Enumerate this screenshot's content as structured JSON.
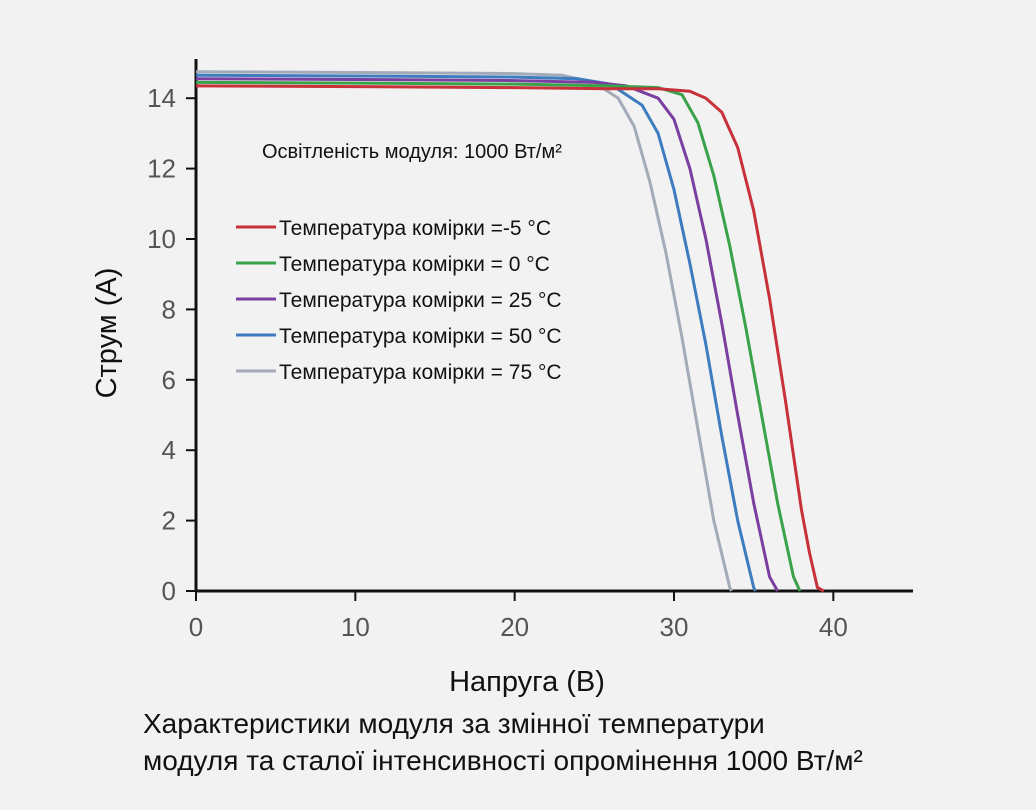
{
  "chart_data": {
    "type": "line",
    "xlabel": "Напруга (В)",
    "ylabel": "Струм (А)",
    "xlim": [
      0,
      45
    ],
    "ylim": [
      0,
      15
    ],
    "xticks": [
      0,
      10,
      20,
      30,
      40
    ],
    "yticks": [
      0,
      2,
      4,
      6,
      8,
      10,
      12,
      14
    ],
    "grid": false,
    "legend_position": "upper-left",
    "annotation": "Освітленість модуля: 1000 Вт/м²",
    "series": [
      {
        "name": "Температура комірки =-5 °С",
        "color": "#c8303a",
        "x": [
          0,
          10,
          20,
          26,
          29,
          31,
          32,
          33,
          34,
          35,
          36,
          37,
          38,
          38.5,
          39,
          39.4
        ],
        "y": [
          14.35,
          14.33,
          14.3,
          14.27,
          14.27,
          14.2,
          14.0,
          13.6,
          12.6,
          10.8,
          8.3,
          5.4,
          2.3,
          1.1,
          0.1,
          0
        ]
      },
      {
        "name": "Температура комірки = 0 °С",
        "color": "#3aa24a",
        "x": [
          0,
          10,
          20,
          26,
          29,
          30.5,
          31.5,
          32.5,
          33.5,
          34.5,
          35.5,
          36.5,
          37.5,
          37.9
        ],
        "y": [
          14.45,
          14.43,
          14.4,
          14.35,
          14.3,
          14.1,
          13.3,
          11.8,
          9.8,
          7.5,
          5.0,
          2.5,
          0.4,
          0
        ]
      },
      {
        "name": "Температура комірки = 25 °С",
        "color": "#7a3fa0",
        "x": [
          0,
          10,
          20,
          25,
          27,
          29,
          30,
          31,
          32,
          33,
          34,
          35,
          36,
          36.5
        ],
        "y": [
          14.55,
          14.53,
          14.5,
          14.45,
          14.35,
          14.0,
          13.4,
          12.0,
          10.0,
          7.6,
          5.0,
          2.5,
          0.4,
          0
        ]
      },
      {
        "name": "Температура комірки = 50 °С",
        "color": "#3e7cc0",
        "x": [
          0,
          10,
          20,
          24,
          26,
          28,
          29,
          30,
          31,
          32,
          33,
          34,
          35,
          35.1
        ],
        "y": [
          14.65,
          14.63,
          14.6,
          14.55,
          14.4,
          13.8,
          13.0,
          11.4,
          9.3,
          7.0,
          4.4,
          2.0,
          0.1,
          0
        ]
      },
      {
        "name": "Температура комірки = 75 °С",
        "color": "#a3aab8",
        "x": [
          0,
          10,
          20,
          23,
          25,
          26.5,
          27.5,
          28.5,
          29.5,
          30.5,
          31.5,
          32.5,
          33.5,
          33.6
        ],
        "y": [
          14.75,
          14.73,
          14.7,
          14.65,
          14.45,
          14.0,
          13.2,
          11.6,
          9.6,
          7.2,
          4.6,
          2.0,
          0.1,
          0
        ]
      }
    ]
  },
  "caption": {
    "line1": "Характеристики модуля за змінної температури",
    "line2": "модуля та сталої інтенсивності опромінення 1000 Вт/м²"
  }
}
